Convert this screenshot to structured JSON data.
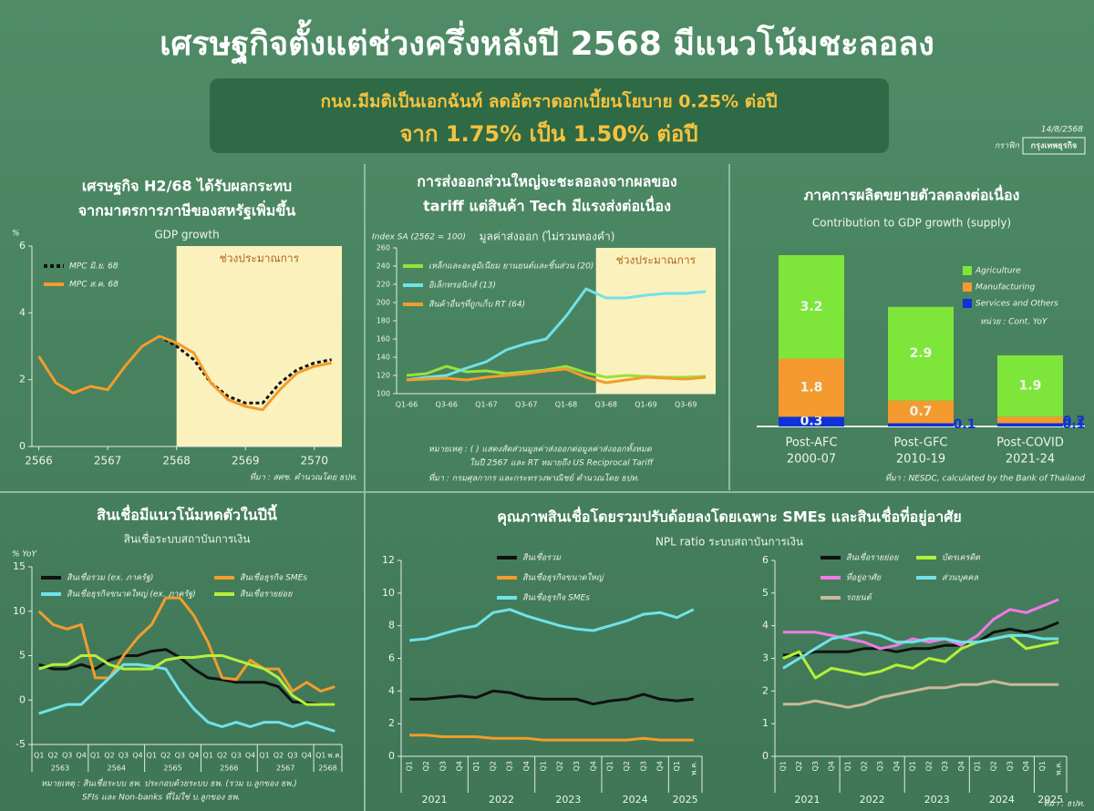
{
  "header": {
    "title": "เศรษฐกิจตั้งแต่ช่วงครึ่งหลังปี 2568 มีแนวโน้มชะลอลง",
    "banner": [
      "กนง.มีมติเป็นเอกฉันท์ ลดอัตราดอกเบี้ยนโยบาย 0.25% ต่อปี",
      "จาก 1.75% เป็น 1.50% ต่อปี"
    ],
    "date": "14/8/2568",
    "brand": [
      "กราฟิก",
      "กรุงเทพธุรกิจ"
    ]
  },
  "chart_data": [
    {
      "type": "line",
      "title": [
        "เศรษฐกิจ H2/68 ได้รับผลกระทบ",
        "จากมาตรการภาษีของสหรัฐเพิ่มขึ้น"
      ],
      "subtitle": "GDP growth",
      "y_label": "%",
      "x": [
        2566,
        2566.25,
        2566.5,
        2566.75,
        2567,
        2567.25,
        2567.5,
        2567.75,
        2568,
        2568.25,
        2568.5,
        2568.75,
        2569,
        2569.25,
        2569.5,
        2569.75,
        2570,
        2570.25
      ],
      "xlim": [
        2565.9,
        2570.4
      ],
      "xticks": [
        2566,
        2567,
        2568,
        2569,
        2570
      ],
      "ylim": [
        0,
        6
      ],
      "yticks": [
        0,
        2,
        4,
        6
      ],
      "forecast_from": 2568,
      "forecast_label": "ช่วงประมาณการ",
      "series": [
        {
          "name": "MPC มิ.ย. 68",
          "color": "#111111",
          "style": "dashed",
          "values": [
            null,
            null,
            null,
            null,
            null,
            null,
            null,
            3.3,
            3.0,
            2.6,
            1.9,
            1.5,
            1.3,
            1.3,
            1.9,
            2.3,
            2.5,
            2.6
          ]
        },
        {
          "name": "MPC ส.ค. 68",
          "color": "#f39c2b",
          "style": "solid",
          "values": [
            2.7,
            1.9,
            1.6,
            1.8,
            1.7,
            2.4,
            3.0,
            3.3,
            3.1,
            2.8,
            1.9,
            1.4,
            1.2,
            1.1,
            1.7,
            2.2,
            2.4,
            2.5
          ]
        }
      ],
      "source": "ที่มา : สศช. คำนวณโดย ธปท."
    },
    {
      "type": "line",
      "title": [
        "การส่งออกส่วนใหญ่จะชะลอลงจากผลของ",
        "tariff แต่สินค้า Tech มีแรงส่งต่อเนื่อง"
      ],
      "subtitle": "มูลค่าส่งออก (ไม่รวมทองคำ)",
      "y_label": "Index SA (2562 = 100)",
      "categories": [
        "Q1-66",
        null,
        "Q3-66",
        null,
        "Q1-67",
        null,
        "Q3-67",
        null,
        "Q1-68",
        null,
        "Q3-68",
        null,
        "Q1-69",
        null,
        "Q3-69",
        null
      ],
      "ylim": [
        100,
        260
      ],
      "yticks": [
        100,
        120,
        140,
        160,
        180,
        200,
        220,
        240,
        260
      ],
      "forecast_from": "Q3-68",
      "forecast_label": "ช่วงประมาณการ",
      "series": [
        {
          "name": "เหล็กและอะลูมิเนียม ยานยนต์และชิ้นส่วน (20)",
          "color": "#9be03a",
          "style": "solid",
          "values": [
            120,
            122,
            130,
            124,
            125,
            122,
            124,
            126,
            130,
            123,
            118,
            120,
            119,
            118,
            118,
            119
          ]
        },
        {
          "name": "อิเล็กทรอนิกส์ (13)",
          "color": "#6fe3e8",
          "style": "solid",
          "values": [
            115,
            118,
            120,
            128,
            135,
            148,
            155,
            160,
            185,
            215,
            205,
            205,
            208,
            210,
            210,
            212
          ]
        },
        {
          "name": "สินค้าอื่นๆที่ถูกเก็บ RT (64)",
          "color": "#f39c2b",
          "style": "solid",
          "values": [
            115,
            116,
            117,
            115,
            118,
            120,
            122,
            125,
            127,
            118,
            112,
            115,
            118,
            117,
            116,
            118
          ]
        }
      ],
      "notes": [
        "หมายเหตุ : ( ) แสดงสัดส่วนมูลค่าส่งออกต่อมูลค่าส่งออกทั้งหมด",
        "ในปี 2567 และ RT หมายถึง US Reciprocal Tariff"
      ],
      "source": "ที่มา : กรมศุลกากร และกระทรวงพาณิชย์ คำนวณโดย ธปท."
    },
    {
      "type": "bar",
      "title": [
        "ภาคการผลิตขยายตัวลดลงต่อเนื่อง"
      ],
      "subtitle": "Contribution to GDP growth (supply)",
      "categories": [
        "Post-AFC",
        "Post-GFC",
        "Post-COVID"
      ],
      "category_sublabels": [
        "2000-07",
        "2010-19",
        "2021-24"
      ],
      "series": [
        {
          "name": "Services and Others",
          "color": "#1030d8",
          "values": [
            0.3,
            0.1,
            0.1
          ]
        },
        {
          "name": "Manufacturing",
          "color": "#f59a2f",
          "values": [
            1.8,
            0.7,
            0.2
          ]
        },
        {
          "name": "Agriculture",
          "color": "#7ee63a",
          "values": [
            3.2,
            2.9,
            1.9
          ]
        }
      ],
      "legend_order": [
        "Agriculture",
        "Manufacturing",
        "Services and Others"
      ],
      "unit": "หน่วย : Cont. YoY",
      "source": "ที่มา : NESDC, calculated by the Bank of Thailand"
    },
    {
      "type": "line",
      "title": [
        "สินเชื่อมีแนวโน้มหดตัวในปีนี้"
      ],
      "subtitle": "สินเชื่อระบบสถาบันการเงิน",
      "y_label": "% YoY",
      "groups": [
        {
          "label": "2563",
          "categories": [
            "Q1",
            "Q2",
            "Q3",
            "Q4"
          ]
        },
        {
          "label": "2564",
          "categories": [
            "Q1",
            "Q2",
            "Q3",
            "Q4"
          ]
        },
        {
          "label": "2565",
          "categories": [
            "Q1",
            "Q2",
            "Q3",
            "Q4"
          ]
        },
        {
          "label": "2566",
          "categories": [
            "Q1",
            "Q2",
            "Q3",
            "Q4"
          ]
        },
        {
          "label": "2567",
          "categories": [
            "Q1",
            "Q2",
            "Q3",
            "Q4"
          ]
        },
        {
          "label": "2568",
          "categories": [
            "Q1",
            "พ.ค."
          ]
        }
      ],
      "ylim": [
        -5,
        15
      ],
      "yticks": [
        -5,
        0,
        5,
        10,
        15
      ],
      "series": [
        {
          "name": "สินเชื่อรวม (ex. ภาครัฐ)",
          "color": "#111111",
          "style": "solid",
          "values": [
            4,
            3.5,
            3.5,
            4,
            3.5,
            4.5,
            5,
            5,
            5.5,
            5.7,
            4.8,
            3.5,
            2.5,
            2.3,
            2,
            2,
            2,
            1.5,
            -0.2,
            -0.3,
            -0.5,
            -0.5
          ]
        },
        {
          "name": "สินเชื่อธุรกิจ SMEs",
          "color": "#f39c2b",
          "style": "solid",
          "values": [
            10,
            8.5,
            8,
            8.5,
            2.5,
            2.5,
            5,
            7,
            8.5,
            11.5,
            11.5,
            9.5,
            6.5,
            2.5,
            2.3,
            4.5,
            3.5,
            3.5,
            1,
            2,
            1,
            1.5
          ]
        },
        {
          "name": "สินเชื่อธุรกิจขนาดใหญ่ (ex. ภาครัฐ)",
          "color": "#6fe3e8",
          "style": "solid",
          "values": [
            -1.5,
            -1,
            -0.5,
            -0.5,
            1,
            2.5,
            4,
            4,
            3.8,
            3.5,
            1,
            -1,
            -2.5,
            -3,
            -2.5,
            -3,
            -2.5,
            -2.5,
            -3,
            -2.5,
            -3,
            -3.5
          ]
        },
        {
          "name": "สินเชื่อรายย่อย",
          "color": "#b4f03a",
          "style": "solid",
          "values": [
            3.5,
            4,
            4,
            5,
            5,
            4,
            3.5,
            3.5,
            3.5,
            4.5,
            4.8,
            4.8,
            5,
            5,
            4.5,
            4,
            3.5,
            2.5,
            0.5,
            -0.5,
            -0.5,
            -0.5
          ]
        }
      ],
      "notes": [
        "หมายเหตุ : สินเชื่อระบบ ธพ. ประกอบด้วยระบบ ธพ. (รวม บ.ลูกของ ธพ.)",
        "SFIs และ Non-banks ที่ไม่ใช่ บ.ลูกของ ธพ."
      ]
    },
    {
      "type": "line",
      "title": [
        "คุณภาพสินเชื่อโดยรวมปรับด้อยลงโดยเฉพาะ SMEs และสินเชื่อที่อยู่อาศัย"
      ],
      "subtitle": "NPL ratio ระบบสถาบันการเงิน",
      "groups": [
        {
          "label": "2021",
          "categories": [
            "Q1",
            "Q2",
            "Q3",
            "Q4"
          ]
        },
        {
          "label": "2022",
          "categories": [
            "Q1",
            "Q2",
            "Q3",
            "Q4"
          ]
        },
        {
          "label": "2023",
          "categories": [
            "Q1",
            "Q2",
            "Q3",
            "Q4"
          ]
        },
        {
          "label": "2024",
          "categories": [
            "Q1",
            "Q2",
            "Q3",
            "Q4"
          ]
        },
        {
          "label": "2025",
          "categories": [
            "Q1",
            "พ.ค."
          ]
        }
      ],
      "ylim": [
        0,
        12
      ],
      "yticks": [
        0,
        2,
        4,
        6,
        8,
        10,
        12
      ],
      "series": [
        {
          "name": "สินเชื่อรวม",
          "color": "#111111",
          "style": "solid",
          "values": [
            3.5,
            3.5,
            3.6,
            3.7,
            3.6,
            4.0,
            3.9,
            3.6,
            3.5,
            3.5,
            3.5,
            3.2,
            3.4,
            3.5,
            3.8,
            3.5,
            3.4,
            3.5
          ]
        },
        {
          "name": "สินเชื่อธุรกิจขนาดใหญ่",
          "color": "#f39c2b",
          "style": "solid",
          "values": [
            1.3,
            1.3,
            1.2,
            1.2,
            1.2,
            1.1,
            1.1,
            1.1,
            1.0,
            1.0,
            1.0,
            1.0,
            1.0,
            1.0,
            1.1,
            1.0,
            1.0,
            1.0
          ]
        },
        {
          "name": "สินเชื่อธุรกิจ SMEs",
          "color": "#6fe3e8",
          "style": "solid",
          "values": [
            7.1,
            7.2,
            7.5,
            7.8,
            8.0,
            8.8,
            9.0,
            8.6,
            8.3,
            8.0,
            7.8,
            7.7,
            8.0,
            8.3,
            8.7,
            8.8,
            8.5,
            9.0
          ]
        }
      ]
    },
    {
      "type": "line",
      "groups": [
        {
          "label": "2021",
          "categories": [
            "Q1",
            "Q2",
            "Q3",
            "Q4"
          ]
        },
        {
          "label": "2022",
          "categories": [
            "Q1",
            "Q2",
            "Q3",
            "Q4"
          ]
        },
        {
          "label": "2023",
          "categories": [
            "Q1",
            "Q2",
            "Q3",
            "Q4"
          ]
        },
        {
          "label": "2024",
          "categories": [
            "Q1",
            "Q2",
            "Q3",
            "Q4"
          ]
        },
        {
          "label": "2025",
          "categories": [
            "Q1",
            "พ.ค."
          ]
        }
      ],
      "ylim": [
        0,
        6
      ],
      "yticks": [
        0,
        1,
        2,
        3,
        4,
        5,
        6
      ],
      "series": [
        {
          "name": "สินเชื่อรายย่อย",
          "color": "#111111",
          "style": "solid",
          "values": [
            3.1,
            3.1,
            3.2,
            3.2,
            3.2,
            3.3,
            3.3,
            3.2,
            3.3,
            3.3,
            3.4,
            3.4,
            3.5,
            3.8,
            3.9,
            3.8,
            3.9,
            4.1
          ]
        },
        {
          "name": "บัตรเครดิต",
          "color": "#b4f03a",
          "style": "solid",
          "values": [
            3.0,
            3.2,
            2.4,
            2.7,
            2.6,
            2.5,
            2.6,
            2.8,
            2.7,
            3.0,
            2.9,
            3.3,
            3.5,
            3.6,
            3.7,
            3.3,
            3.4,
            3.5
          ]
        },
        {
          "name": "ที่อยู่อาศัย",
          "color": "#f07ae6",
          "style": "solid",
          "values": [
            3.8,
            3.8,
            3.8,
            3.7,
            3.6,
            3.5,
            3.3,
            3.4,
            3.6,
            3.5,
            3.6,
            3.4,
            3.7,
            4.2,
            4.5,
            4.4,
            4.6,
            4.8
          ]
        },
        {
          "name": "ส่วนบุคคล",
          "color": "#6fe3e8",
          "style": "solid",
          "values": [
            2.7,
            3.0,
            3.3,
            3.6,
            3.7,
            3.8,
            3.7,
            3.5,
            3.5,
            3.6,
            3.6,
            3.5,
            3.5,
            3.6,
            3.7,
            3.7,
            3.6,
            3.6
          ]
        },
        {
          "name": "รถยนต์",
          "color": "#c9b99a",
          "style": "solid",
          "values": [
            1.6,
            1.6,
            1.7,
            1.6,
            1.5,
            1.6,
            1.8,
            1.9,
            2.0,
            2.1,
            2.1,
            2.2,
            2.2,
            2.3,
            2.2,
            2.2,
            2.2,
            2.2
          ]
        }
      ],
      "source": "ที่มา : ธปท."
    }
  ]
}
